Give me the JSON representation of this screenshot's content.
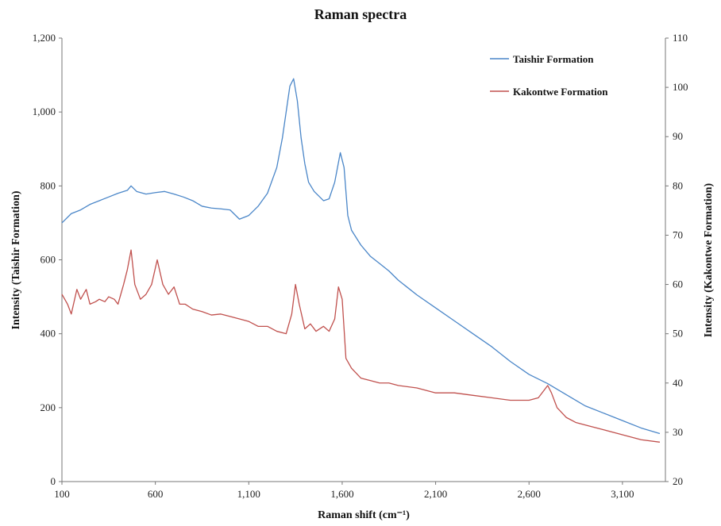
{
  "chart_data": {
    "type": "line",
    "title": "Raman spectra",
    "xlabel": "Raman shift (cm⁻¹)",
    "ylabel_left": "Intensity (Taishir Formation)",
    "ylabel_right": "Intensity (Kakontwe Formation)",
    "xlim": [
      100,
      3330
    ],
    "ylim_left": [
      0,
      1200
    ],
    "ylim_right": [
      20,
      110
    ],
    "x_ticks": [
      "100",
      "600",
      "1,100",
      "1,600",
      "2,100",
      "2,600",
      "3,100"
    ],
    "y_left_ticks": [
      "0",
      "200",
      "400",
      "600",
      "800",
      "1,000",
      "1,200"
    ],
    "y_right_ticks": [
      "20",
      "30",
      "40",
      "50",
      "60",
      "70",
      "80",
      "90",
      "100",
      "110"
    ],
    "grid": false,
    "legend_position": "top-right",
    "series": [
      {
        "name": "Taishir Formation",
        "axis": "left",
        "color": "#4a86c8",
        "x": [
          100,
          150,
          200,
          250,
          300,
          350,
          400,
          450,
          470,
          500,
          550,
          600,
          650,
          700,
          750,
          800,
          850,
          900,
          950,
          1000,
          1050,
          1100,
          1150,
          1200,
          1250,
          1280,
          1300,
          1320,
          1340,
          1360,
          1380,
          1400,
          1420,
          1450,
          1500,
          1530,
          1560,
          1590,
          1610,
          1630,
          1650,
          1700,
          1750,
          1800,
          1850,
          1900,
          1950,
          2000,
          2100,
          2200,
          2300,
          2400,
          2500,
          2600,
          2700,
          2800,
          2900,
          3000,
          3100,
          3200,
          3300
        ],
        "values": [
          700,
          725,
          735,
          750,
          760,
          770,
          780,
          788,
          800,
          785,
          778,
          782,
          785,
          778,
          770,
          760,
          745,
          740,
          738,
          735,
          710,
          720,
          745,
          780,
          850,
          930,
          1000,
          1070,
          1090,
          1030,
          930,
          860,
          810,
          785,
          760,
          765,
          810,
          890,
          850,
          720,
          680,
          640,
          610,
          590,
          570,
          545,
          525,
          505,
          470,
          435,
          400,
          365,
          325,
          290,
          265,
          235,
          205,
          185,
          165,
          145,
          130
        ]
      },
      {
        "name": "Kakontwe Formation",
        "axis": "right",
        "color": "#c0504d",
        "x": [
          100,
          130,
          150,
          180,
          200,
          230,
          250,
          280,
          300,
          330,
          350,
          380,
          400,
          430,
          450,
          470,
          490,
          520,
          550,
          580,
          610,
          640,
          670,
          700,
          730,
          760,
          800,
          850,
          900,
          950,
          1000,
          1050,
          1100,
          1150,
          1200,
          1250,
          1300,
          1330,
          1350,
          1370,
          1400,
          1430,
          1460,
          1500,
          1530,
          1560,
          1580,
          1600,
          1620,
          1650,
          1700,
          1750,
          1800,
          1850,
          1900,
          2000,
          2050,
          2100,
          2200,
          2300,
          2400,
          2500,
          2550,
          2600,
          2650,
          2700,
          2720,
          2750,
          2800,
          2850,
          2900,
          3000,
          3100,
          3200,
          3300
        ],
        "values": [
          58,
          56,
          54,
          59,
          57,
          59,
          56,
          56.5,
          57,
          56.5,
          57.5,
          57,
          56,
          60,
          63,
          67,
          60,
          57,
          58,
          60,
          65,
          60,
          58,
          59.5,
          56,
          56,
          55,
          54.5,
          53.8,
          54,
          53.5,
          53,
          52.5,
          51.5,
          51.5,
          50.5,
          50,
          54,
          60,
          56,
          51,
          52,
          50.5,
          51.5,
          50.5,
          53,
          59.5,
          57,
          45,
          43,
          41,
          40.5,
          40,
          40,
          39.5,
          39,
          38.5,
          38,
          38,
          37.5,
          37,
          36.5,
          36.5,
          36.5,
          37,
          39.5,
          38,
          35,
          33,
          32,
          31.5,
          30.5,
          29.5,
          28.5,
          28
        ]
      }
    ]
  }
}
